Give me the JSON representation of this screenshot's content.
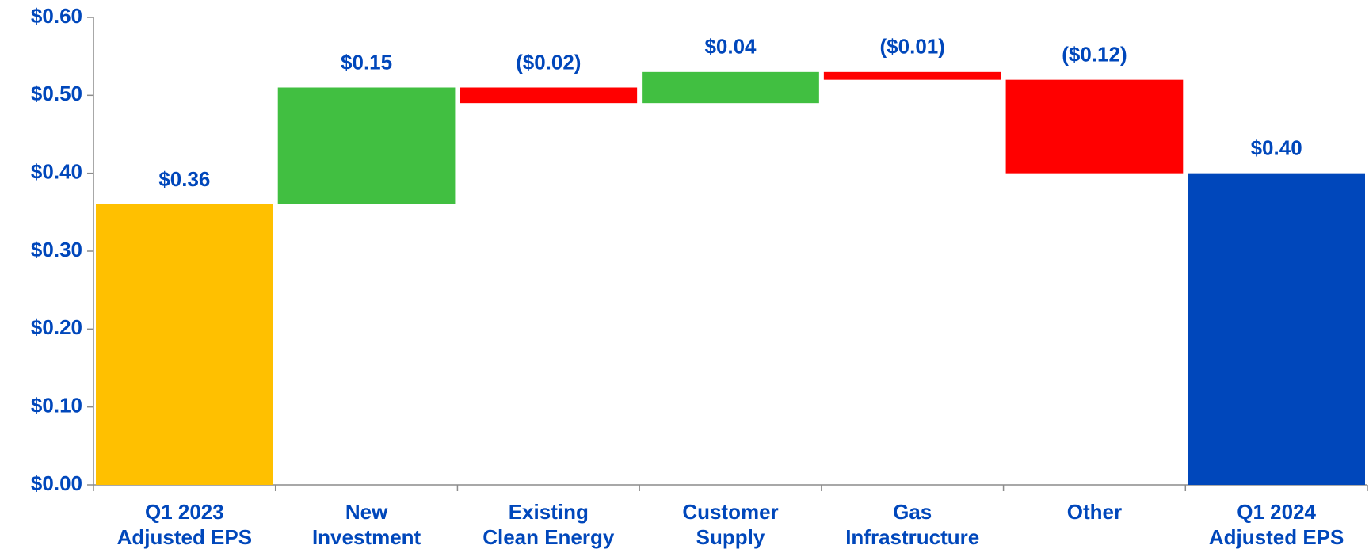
{
  "chart_data": {
    "type": "waterfall",
    "categories": [
      [
        "Q1 2023",
        "Adjusted EPS"
      ],
      [
        "New",
        "Investment"
      ],
      [
        "Existing",
        "Clean Energy"
      ],
      [
        "Customer",
        "Supply"
      ],
      [
        "Gas",
        "Infrastructure"
      ],
      [
        "Other"
      ],
      [
        "Q1 2024",
        "Adjusted EPS"
      ]
    ],
    "values": [
      0.36,
      0.15,
      -0.02,
      0.04,
      -0.01,
      -0.12,
      0.4
    ],
    "value_labels": [
      "$0.36",
      "$0.15",
      "($0.02)",
      "$0.04",
      "($0.01)",
      "($0.12)",
      "$0.40"
    ],
    "measure": [
      "absolute",
      "relative",
      "relative",
      "relative",
      "relative",
      "relative",
      "total"
    ],
    "colors": [
      "#ffc000",
      "#41bf41",
      "#ff0000",
      "#41bf41",
      "#ff0000",
      "#ff0000",
      "#0047bb"
    ],
    "ylim": [
      0,
      0.6
    ],
    "yticks": [
      {
        "value": 0,
        "label": "$0.00"
      },
      {
        "value": 0.1,
        "label": "$0.10"
      },
      {
        "value": 0.2,
        "label": "$0.20"
      },
      {
        "value": 0.3,
        "label": "$0.30"
      },
      {
        "value": 0.4,
        "label": "$0.40"
      },
      {
        "value": 0.5,
        "label": "$0.50"
      },
      {
        "value": 0.6,
        "label": "$0.60"
      }
    ],
    "grid": false
  }
}
